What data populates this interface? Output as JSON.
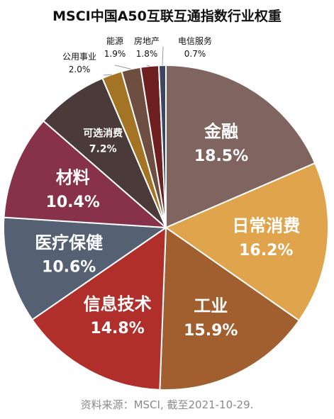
{
  "chart_data": {
    "type": "pie",
    "title": "MSCI中国A50互联互通指数行业权重",
    "source_note": "资料来源：MSCI, 截至2021-10-29.",
    "start_angle_deg": 0,
    "direction": "clockwise",
    "slices": [
      {
        "label": "金融",
        "value_text": "18.5%",
        "value": 18.5,
        "color": "#7f6460",
        "label_style": "inside-large"
      },
      {
        "label": "日常消费",
        "value_text": "16.2%",
        "value": 16.2,
        "color": "#e0a44c",
        "label_style": "inside-large"
      },
      {
        "label": "工业",
        "value_text": "15.9%",
        "value": 15.9,
        "color": "#a15f2f",
        "label_style": "inside-large"
      },
      {
        "label": "信息技术",
        "value_text": "14.8%",
        "value": 14.8,
        "color": "#b12f2a",
        "label_style": "inside-large"
      },
      {
        "label": "医疗保健",
        "value_text": "10.6%",
        "value": 10.6,
        "color": "#566073",
        "label_style": "inside-large"
      },
      {
        "label": "材料",
        "value_text": "10.4%",
        "value": 10.4,
        "color": "#87324a",
        "label_style": "inside-large"
      },
      {
        "label": "可选消费",
        "value_text": "7.2%",
        "value": 7.2,
        "color": "#4a3b3a",
        "label_style": "inside-small"
      },
      {
        "label": "公用事业",
        "value_text": "2.0%",
        "value": 2.0,
        "color": "#a37423",
        "label_style": "outside"
      },
      {
        "label": "能源",
        "value_text": "1.9%",
        "value": 1.9,
        "color": "#6d4e40",
        "label_style": "outside"
      },
      {
        "label": "房地产",
        "value_text": "1.8%",
        "value": 1.8,
        "color": "#6e2020",
        "label_style": "outside"
      },
      {
        "label": "电信服务",
        "value_text": "0.7%",
        "value": 0.7,
        "color": "#3d4660",
        "label_style": "outside"
      }
    ]
  }
}
